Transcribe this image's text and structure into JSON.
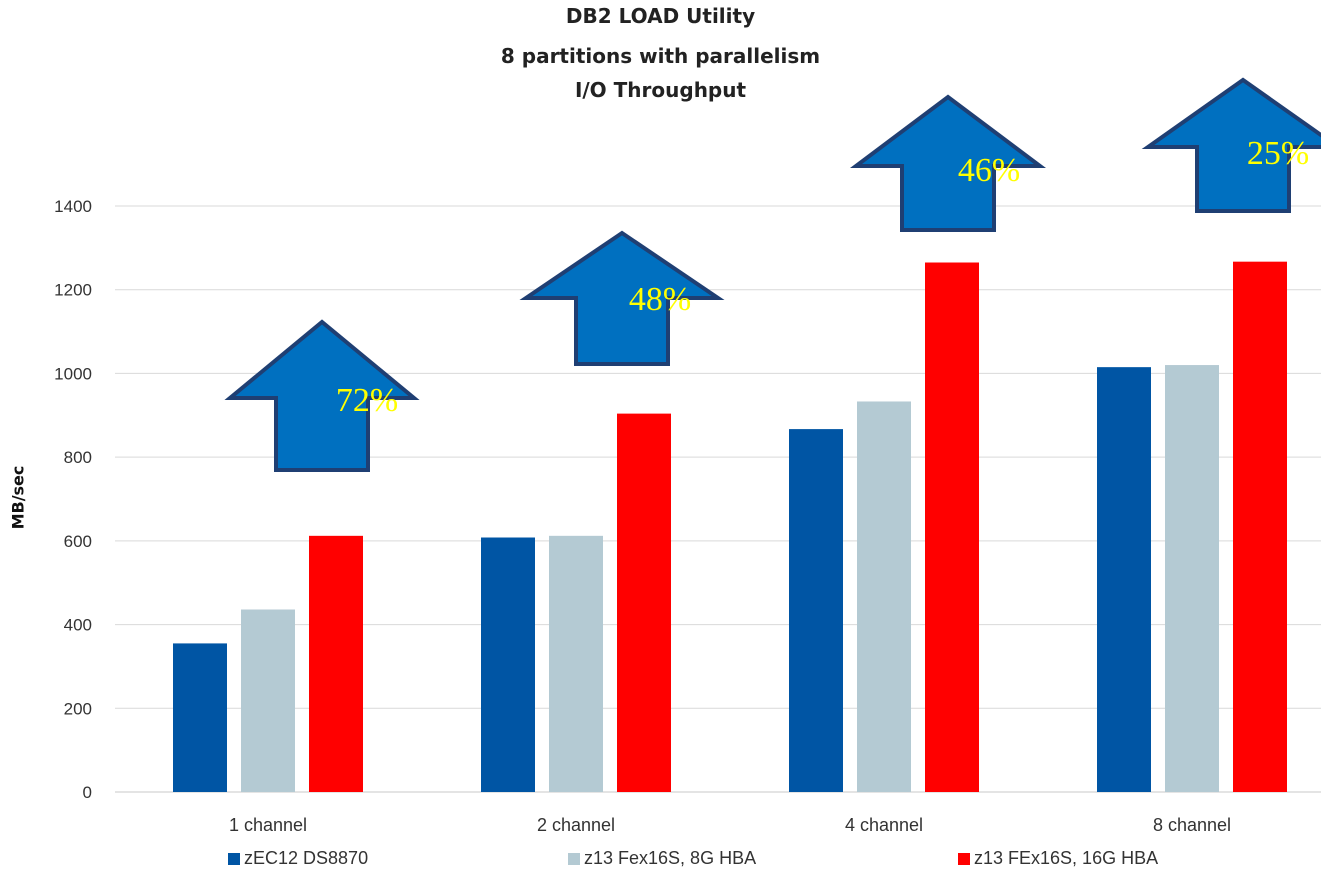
{
  "chart_data": {
    "type": "bar",
    "title_lines": [
      "DB2 LOAD Utility",
      "8 partitions with parallelism",
      "I/O Throughput"
    ],
    "xlabel": "",
    "ylabel": "MB/sec",
    "categories": [
      "1 channel",
      "2 channel",
      "4 channel",
      "8 channel"
    ],
    "ylim": [
      0,
      1400
    ],
    "yticks": [
      0,
      200,
      400,
      600,
      800,
      1000,
      1200,
      1400
    ],
    "grid": true,
    "legend_position": "bottom",
    "series": [
      {
        "name": "zEC12 DS8870",
        "color": "#0055A4",
        "values": [
          355,
          608,
          867,
          1015
        ]
      },
      {
        "name": "z13 Fex16S, 8G HBA",
        "color": "#B4CAD3",
        "values": [
          436,
          612,
          933,
          1020
        ]
      },
      {
        "name": "z13 FEx16S, 16G HBA",
        "color": "#FF0000",
        "values": [
          612,
          904,
          1265,
          1267
        ]
      }
    ],
    "annotations": [
      {
        "category": "1 channel",
        "label": "72%"
      },
      {
        "category": "2 channel",
        "label": "48%"
      },
      {
        "category": "4 channel",
        "label": "46%"
      },
      {
        "category": "8 channel",
        "label": "25%"
      }
    ],
    "annotation_style": {
      "arrow_fill": "#0070C0",
      "arrow_stroke": "#1F3F73",
      "text_color": "#FFFF00"
    }
  }
}
